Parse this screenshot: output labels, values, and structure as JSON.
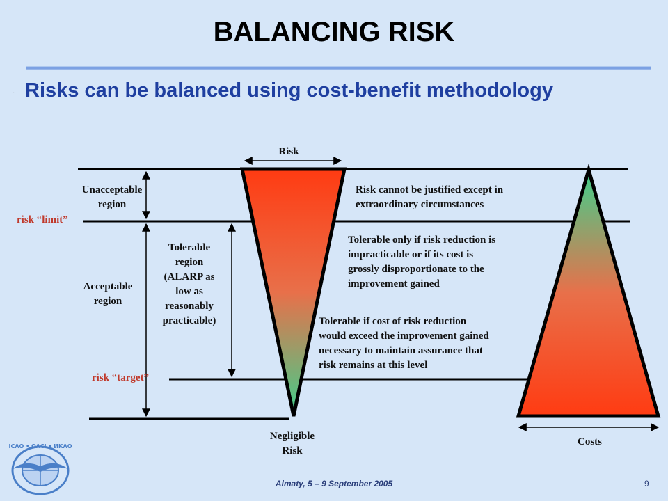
{
  "slide": {
    "title": "BALANCING RISK",
    "subtitle": "Risks can be balanced using cost-benefit methodology",
    "bullet": "·"
  },
  "diagram": {
    "top_label": "Risk",
    "bottom_label_line1": "Negligible",
    "bottom_label_line2": "Risk",
    "costs_label": "Costs",
    "unacceptable_line1": "Unacceptable",
    "unacceptable_line2": "region",
    "acceptable_line1": "Acceptable",
    "acceptable_line2": "region",
    "risk_limit": "risk “limit”",
    "risk_target": "risk “target”",
    "tolerable_lines": [
      "Tolerable",
      "region",
      "(ALARP as",
      "low as",
      "reasonably",
      "practicable)"
    ],
    "desc_unjustified": [
      "Risk cannot be justified except in",
      "extraordinary circumstances"
    ],
    "desc_tolerable_only": [
      "Tolerable only if risk reduction is",
      "impracticable or if its cost is",
      "grossly disproportionate to the",
      "improvement gained"
    ],
    "desc_tolerable_if": [
      "Tolerable if cost of risk reduction",
      "would exceed the improvement gained",
      "necessary to maintain assurance that",
      "risk remains at this level"
    ],
    "colors": {
      "red": "#ff3b12",
      "green": "#3fd08c",
      "line": "#000000",
      "label_red": "#c0392b"
    }
  },
  "footer": {
    "event": "Almaty, 5 – 9 September 2005",
    "page_number": "9"
  },
  "logo": {
    "text": "ICAO • OACI • ИКАО"
  }
}
